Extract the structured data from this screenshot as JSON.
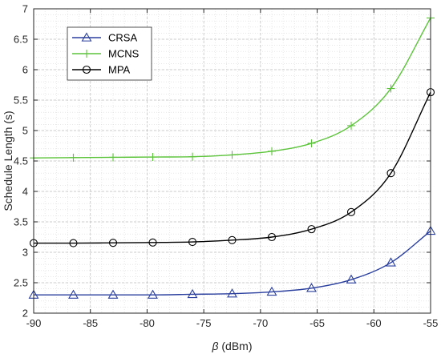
{
  "chart_data": {
    "type": "line",
    "title": "",
    "xlabel_symbol": "β",
    "xlabel_unit": " (dBm)",
    "ylabel": "Schedule Length (s)",
    "xlim": [
      -90,
      -55
    ],
    "ylim": [
      2,
      7
    ],
    "xticks": [
      -90,
      -85,
      -80,
      -75,
      -70,
      -65,
      -60,
      -55
    ],
    "yticks": [
      2,
      2.5,
      3,
      3.5,
      4,
      4.5,
      5,
      5.5,
      6,
      6.5,
      7
    ],
    "grid": true,
    "minor_grid": true,
    "legend_position": "top-left",
    "x": [
      -90,
      -86.5,
      -83,
      -79.5,
      -76,
      -72.5,
      -69,
      -65.5,
      -62,
      -58.5,
      -55
    ],
    "series": [
      {
        "name": "CRSA",
        "color": "#2a3f9e",
        "marker": "triangle",
        "values": [
          2.3,
          2.3,
          2.3,
          2.3,
          2.31,
          2.32,
          2.35,
          2.41,
          2.55,
          2.83,
          3.35
        ]
      },
      {
        "name": "MCNS",
        "color": "#5cc43a",
        "marker": "plus",
        "values": [
          4.55,
          4.555,
          4.56,
          4.565,
          4.57,
          4.6,
          4.66,
          4.79,
          5.08,
          5.69,
          6.85
        ]
      },
      {
        "name": "MPA",
        "color": "#000000",
        "marker": "circle",
        "values": [
          3.15,
          3.15,
          3.155,
          3.16,
          3.17,
          3.2,
          3.25,
          3.38,
          3.66,
          4.3,
          5.63
        ]
      }
    ]
  }
}
